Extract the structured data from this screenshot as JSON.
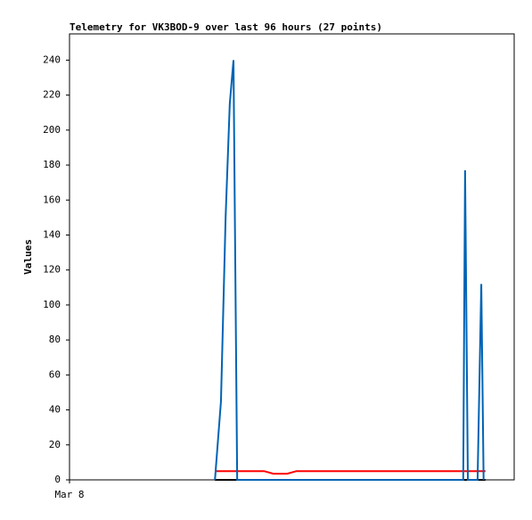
{
  "chart_data": {
    "type": "line",
    "title": "Telemetry for VK3BOD-9 over last 96 hours (27 points)",
    "y_label": "Values",
    "xlim": [
      0,
      96
    ],
    "xticks": [
      {
        "value": 0,
        "label": "Mar 8"
      }
    ],
    "ylim": [
      0,
      255
    ],
    "yticks": [
      0,
      20,
      40,
      60,
      80,
      100,
      120,
      140,
      160,
      180,
      200,
      220,
      240
    ],
    "series": [
      {
        "color": "#000000",
        "x": [
          31.4,
          89.8
        ],
        "values": [
          0,
          0
        ]
      },
      {
        "color": "#ff0000",
        "x": [
          31.4,
          42,
          44,
          47,
          49,
          89.8
        ],
        "values": [
          5,
          5,
          3.5,
          3.5,
          5,
          5
        ]
      },
      {
        "color": "#0063b5",
        "x": [
          31.4,
          32.7,
          33.7,
          34.6,
          35.4,
          36.2,
          85.0,
          85.4,
          86.0,
          88.1,
          88.9,
          89.4
        ],
        "values": [
          0,
          45,
          150,
          215,
          240,
          0,
          0,
          177,
          0,
          0,
          112,
          0
        ]
      }
    ]
  }
}
